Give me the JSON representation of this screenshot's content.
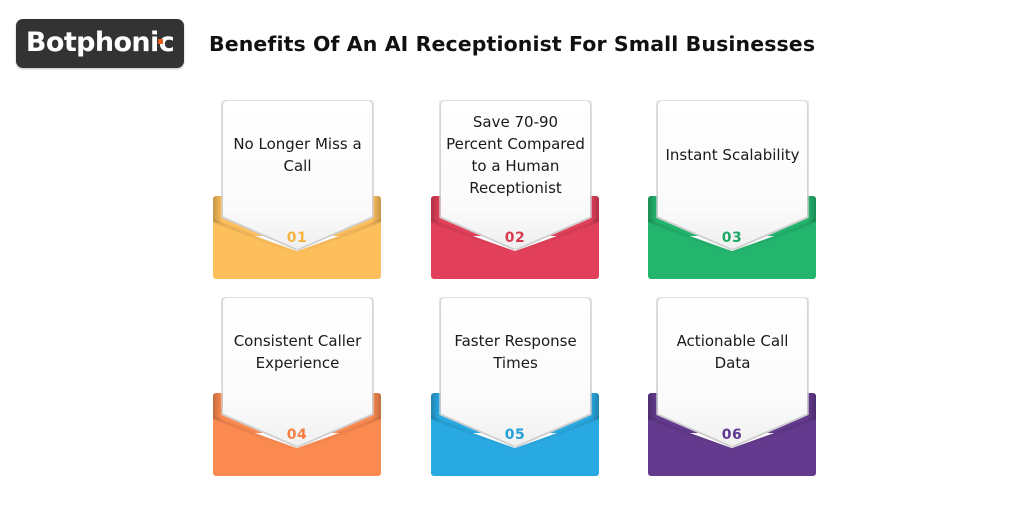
{
  "header": {
    "logo_text": "Botphonic",
    "logo_accent_color": "#e8621c",
    "logo_bg_color": "#333333",
    "title": "Benefits Of An AI Receptionist For Small Businesses"
  },
  "cards": [
    {
      "number": "01",
      "text": "No Longer Miss a Call",
      "color": "#fdbe5c",
      "number_color": "#f5b342"
    },
    {
      "number": "02",
      "text": "Save 70-90 Percent Compared to a Human Receptionist",
      "color": "#e2405a",
      "number_color": "#d83a52"
    },
    {
      "number": "03",
      "text": "Instant Scalability",
      "color": "#23b46e",
      "number_color": "#20a866"
    },
    {
      "number": "04",
      "text": "Consistent Caller Experience",
      "color": "#fb8a50",
      "number_color": "#f47f43"
    },
    {
      "number": "05",
      "text": "Faster Response Times",
      "color": "#29a9e2",
      "number_color": "#249fd8"
    },
    {
      "number": "06",
      "text": "Actionable Call Data",
      "color": "#633a8e",
      "number_color": "#5e3790"
    }
  ]
}
